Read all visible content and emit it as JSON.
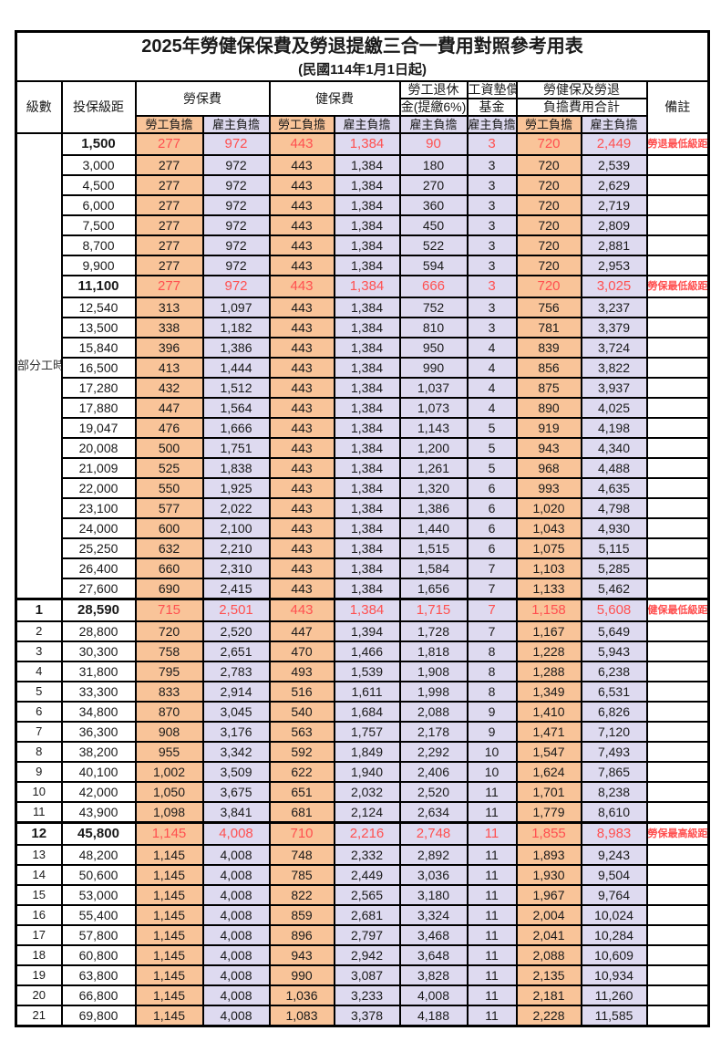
{
  "title": "2025年勞健保保費及勞退提繳三合一費用對照參考用表",
  "subtitle": "(民國114年1月1日起)",
  "columns": {
    "level": "級數",
    "bracket": "投保級距",
    "labor_fee": "勞保費",
    "health_fee": "健保費",
    "pension_top": "勞工退休",
    "pension_bottom": "金(提繳6%)",
    "fund_top": "工資墊償",
    "fund_bottom": "基金",
    "total_top": "勞健保及勞退",
    "total_bottom": "負擔費用合計",
    "note": "備註",
    "employee_label": "勞工負擔",
    "employer_label": "雇主負擔"
  },
  "part_time_label": "部分工時",
  "colors": {
    "employee_bg": "#F9C499",
    "employer_bg": "#DEDAF0",
    "highlight_text": "#FF5050",
    "border": "#000000"
  },
  "rows": [
    {
      "level": "",
      "bracket": "1,500",
      "values": [
        "277",
        "972",
        "443",
        "1,384",
        "90",
        "3",
        "720",
        "2,449"
      ],
      "note": "勞退最低級距",
      "highlight": true
    },
    {
      "level": "",
      "bracket": "3,000",
      "values": [
        "277",
        "972",
        "443",
        "1,384",
        "180",
        "3",
        "720",
        "2,539"
      ],
      "note": ""
    },
    {
      "level": "",
      "bracket": "4,500",
      "values": [
        "277",
        "972",
        "443",
        "1,384",
        "270",
        "3",
        "720",
        "2,629"
      ],
      "note": ""
    },
    {
      "level": "",
      "bracket": "6,000",
      "values": [
        "277",
        "972",
        "443",
        "1,384",
        "360",
        "3",
        "720",
        "2,719"
      ],
      "note": ""
    },
    {
      "level": "",
      "bracket": "7,500",
      "values": [
        "277",
        "972",
        "443",
        "1,384",
        "450",
        "3",
        "720",
        "2,809"
      ],
      "note": ""
    },
    {
      "level": "",
      "bracket": "8,700",
      "values": [
        "277",
        "972",
        "443",
        "1,384",
        "522",
        "3",
        "720",
        "2,881"
      ],
      "note": ""
    },
    {
      "level": "",
      "bracket": "9,900",
      "values": [
        "277",
        "972",
        "443",
        "1,384",
        "594",
        "3",
        "720",
        "2,953"
      ],
      "note": ""
    },
    {
      "level": "",
      "bracket": "11,100",
      "values": [
        "277",
        "972",
        "443",
        "1,384",
        "666",
        "3",
        "720",
        "3,025"
      ],
      "note": "勞保最低級距",
      "highlight": true
    },
    {
      "level": "",
      "bracket": "12,540",
      "values": [
        "313",
        "1,097",
        "443",
        "1,384",
        "752",
        "3",
        "756",
        "3,237"
      ],
      "note": ""
    },
    {
      "level": "",
      "bracket": "13,500",
      "values": [
        "338",
        "1,182",
        "443",
        "1,384",
        "810",
        "3",
        "781",
        "3,379"
      ],
      "note": ""
    },
    {
      "level": "",
      "bracket": "15,840",
      "values": [
        "396",
        "1,386",
        "443",
        "1,384",
        "950",
        "4",
        "839",
        "3,724"
      ],
      "note": ""
    },
    {
      "level": "",
      "bracket": "16,500",
      "values": [
        "413",
        "1,444",
        "443",
        "1,384",
        "990",
        "4",
        "856",
        "3,822"
      ],
      "note": ""
    },
    {
      "level": "",
      "bracket": "17,280",
      "values": [
        "432",
        "1,512",
        "443",
        "1,384",
        "1,037",
        "4",
        "875",
        "3,937"
      ],
      "note": ""
    },
    {
      "level": "",
      "bracket": "17,880",
      "values": [
        "447",
        "1,564",
        "443",
        "1,384",
        "1,073",
        "4",
        "890",
        "4,025"
      ],
      "note": ""
    },
    {
      "level": "",
      "bracket": "19,047",
      "values": [
        "476",
        "1,666",
        "443",
        "1,384",
        "1,143",
        "5",
        "919",
        "4,198"
      ],
      "note": ""
    },
    {
      "level": "",
      "bracket": "20,008",
      "values": [
        "500",
        "1,751",
        "443",
        "1,384",
        "1,200",
        "5",
        "943",
        "4,340"
      ],
      "note": ""
    },
    {
      "level": "",
      "bracket": "21,009",
      "values": [
        "525",
        "1,838",
        "443",
        "1,384",
        "1,261",
        "5",
        "968",
        "4,488"
      ],
      "note": ""
    },
    {
      "level": "",
      "bracket": "22,000",
      "values": [
        "550",
        "1,925",
        "443",
        "1,384",
        "1,320",
        "6",
        "993",
        "4,635"
      ],
      "note": ""
    },
    {
      "level": "",
      "bracket": "23,100",
      "values": [
        "577",
        "2,022",
        "443",
        "1,384",
        "1,386",
        "6",
        "1,020",
        "4,798"
      ],
      "note": ""
    },
    {
      "level": "",
      "bracket": "24,000",
      "values": [
        "600",
        "2,100",
        "443",
        "1,384",
        "1,440",
        "6",
        "1,043",
        "4,930"
      ],
      "note": ""
    },
    {
      "level": "",
      "bracket": "25,250",
      "values": [
        "632",
        "2,210",
        "443",
        "1,384",
        "1,515",
        "6",
        "1,075",
        "5,115"
      ],
      "note": ""
    },
    {
      "level": "",
      "bracket": "26,400",
      "values": [
        "660",
        "2,310",
        "443",
        "1,384",
        "1,584",
        "7",
        "1,103",
        "5,285"
      ],
      "note": ""
    },
    {
      "level": "",
      "bracket": "27,600",
      "values": [
        "690",
        "2,415",
        "443",
        "1,384",
        "1,656",
        "7",
        "1,133",
        "5,462"
      ],
      "note": ""
    },
    {
      "level": "1",
      "bracket": "28,590",
      "values": [
        "715",
        "2,501",
        "443",
        "1,384",
        "1,715",
        "7",
        "1,158",
        "5,608"
      ],
      "note": "健保最低級距",
      "highlight": true,
      "thick_top": true
    },
    {
      "level": "2",
      "bracket": "28,800",
      "values": [
        "720",
        "2,520",
        "447",
        "1,394",
        "1,728",
        "7",
        "1,167",
        "5,649"
      ],
      "note": ""
    },
    {
      "level": "3",
      "bracket": "30,300",
      "values": [
        "758",
        "2,651",
        "470",
        "1,466",
        "1,818",
        "8",
        "1,228",
        "5,943"
      ],
      "note": ""
    },
    {
      "level": "4",
      "bracket": "31,800",
      "values": [
        "795",
        "2,783",
        "493",
        "1,539",
        "1,908",
        "8",
        "1,288",
        "6,238"
      ],
      "note": ""
    },
    {
      "level": "5",
      "bracket": "33,300",
      "values": [
        "833",
        "2,914",
        "516",
        "1,611",
        "1,998",
        "8",
        "1,349",
        "6,531"
      ],
      "note": ""
    },
    {
      "level": "6",
      "bracket": "34,800",
      "values": [
        "870",
        "3,045",
        "540",
        "1,684",
        "2,088",
        "9",
        "1,410",
        "6,826"
      ],
      "note": ""
    },
    {
      "level": "7",
      "bracket": "36,300",
      "values": [
        "908",
        "3,176",
        "563",
        "1,757",
        "2,178",
        "9",
        "1,471",
        "7,120"
      ],
      "note": ""
    },
    {
      "level": "8",
      "bracket": "38,200",
      "values": [
        "955",
        "3,342",
        "592",
        "1,849",
        "2,292",
        "10",
        "1,547",
        "7,493"
      ],
      "note": ""
    },
    {
      "level": "9",
      "bracket": "40,100",
      "values": [
        "1,002",
        "3,509",
        "622",
        "1,940",
        "2,406",
        "10",
        "1,624",
        "7,865"
      ],
      "note": ""
    },
    {
      "level": "10",
      "bracket": "42,000",
      "values": [
        "1,050",
        "3,675",
        "651",
        "2,032",
        "2,520",
        "11",
        "1,701",
        "8,238"
      ],
      "note": ""
    },
    {
      "level": "11",
      "bracket": "43,900",
      "values": [
        "1,098",
        "3,841",
        "681",
        "2,124",
        "2,634",
        "11",
        "1,779",
        "8,610"
      ],
      "note": ""
    },
    {
      "level": "12",
      "bracket": "45,800",
      "values": [
        "1,145",
        "4,008",
        "710",
        "2,216",
        "2,748",
        "11",
        "1,855",
        "8,983"
      ],
      "note": "勞保最高級距",
      "highlight": true,
      "thick_top": true
    },
    {
      "level": "13",
      "bracket": "48,200",
      "values": [
        "1,145",
        "4,008",
        "748",
        "2,332",
        "2,892",
        "11",
        "1,893",
        "9,243"
      ],
      "note": ""
    },
    {
      "level": "14",
      "bracket": "50,600",
      "values": [
        "1,145",
        "4,008",
        "785",
        "2,449",
        "3,036",
        "11",
        "1,930",
        "9,504"
      ],
      "note": ""
    },
    {
      "level": "15",
      "bracket": "53,000",
      "values": [
        "1,145",
        "4,008",
        "822",
        "2,565",
        "3,180",
        "11",
        "1,967",
        "9,764"
      ],
      "note": ""
    },
    {
      "level": "16",
      "bracket": "55,400",
      "values": [
        "1,145",
        "4,008",
        "859",
        "2,681",
        "3,324",
        "11",
        "2,004",
        "10,024"
      ],
      "note": ""
    },
    {
      "level": "17",
      "bracket": "57,800",
      "values": [
        "1,145",
        "4,008",
        "896",
        "2,797",
        "3,468",
        "11",
        "2,041",
        "10,284"
      ],
      "note": ""
    },
    {
      "level": "18",
      "bracket": "60,800",
      "values": [
        "1,145",
        "4,008",
        "943",
        "2,942",
        "3,648",
        "11",
        "2,088",
        "10,609"
      ],
      "note": ""
    },
    {
      "level": "19",
      "bracket": "63,800",
      "values": [
        "1,145",
        "4,008",
        "990",
        "3,087",
        "3,828",
        "11",
        "2,135",
        "10,934"
      ],
      "note": ""
    },
    {
      "level": "20",
      "bracket": "66,800",
      "values": [
        "1,145",
        "4,008",
        "1,036",
        "3,233",
        "4,008",
        "11",
        "2,181",
        "11,260"
      ],
      "note": ""
    },
    {
      "level": "21",
      "bracket": "69,800",
      "values": [
        "1,145",
        "4,008",
        "1,083",
        "3,378",
        "4,188",
        "11",
        "2,228",
        "11,585"
      ],
      "note": ""
    }
  ]
}
